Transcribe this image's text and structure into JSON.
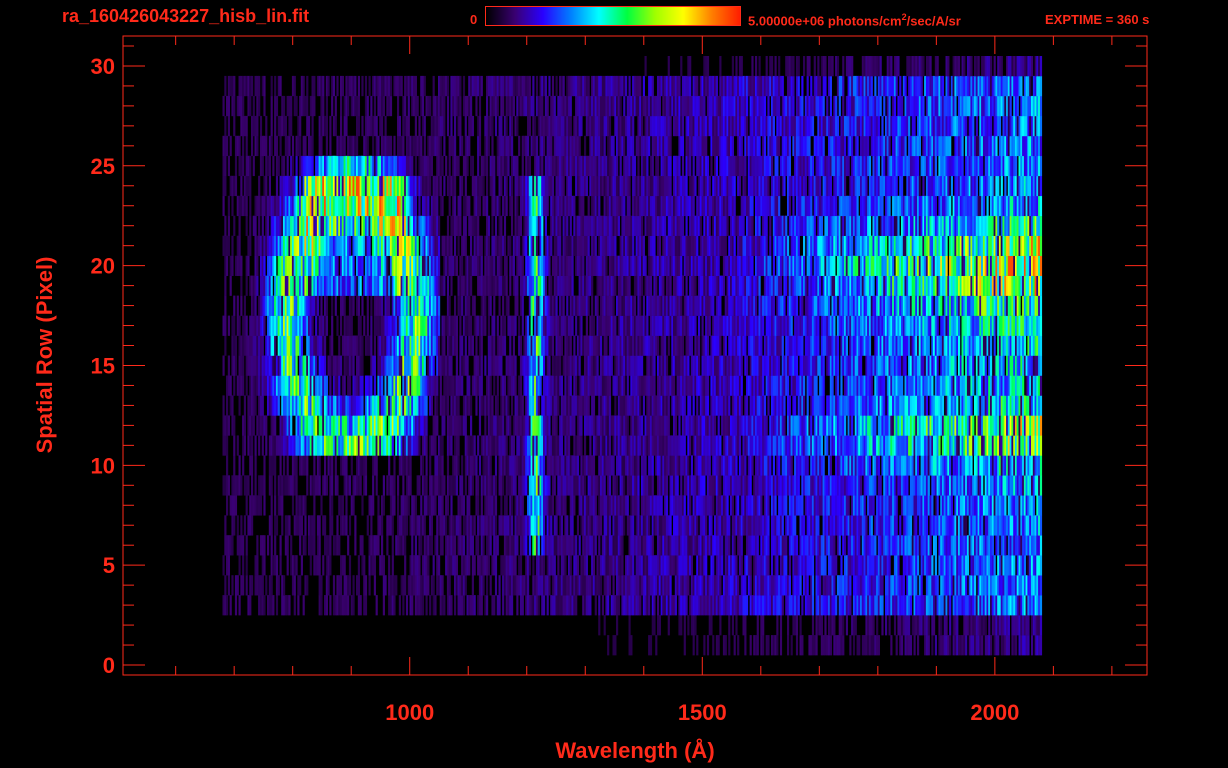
{
  "header": {
    "file_title": "ra_160426043227_hisb_lin.fit",
    "colorbar_min": "0",
    "colorbar_max_pre": "5.00000e+06 photons/cm",
    "colorbar_max_sup": "2",
    "colorbar_max_post": "/sec/A/sr",
    "exptime": "EXPTIME = 360 s"
  },
  "colors": {
    "axis": "#ff2a1a",
    "background": "#000000",
    "colormap": [
      "#000000",
      "#3a0070",
      "#2a00ff",
      "#0080ff",
      "#00ffff",
      "#00ff40",
      "#a0ff00",
      "#ffff00",
      "#ff8000",
      "#ff2000"
    ]
  },
  "chart_data": {
    "type": "heatmap",
    "title": "ra_160426043227_hisb_lin.fit",
    "xlabel": "Wavelength (Å)",
    "ylabel": "Spatial Row (Pixel)",
    "xlim": [
      510,
      2260
    ],
    "ylim": [
      -0.5,
      31.5
    ],
    "x_ticks": [
      1000,
      1500,
      2000
    ],
    "y_ticks": [
      0,
      5,
      10,
      15,
      20,
      25,
      30
    ],
    "colorbar_range": [
      0,
      5000000
    ],
    "colorbar_unit": "photons/cm^2/sec/A/sr",
    "grid": false
  }
}
